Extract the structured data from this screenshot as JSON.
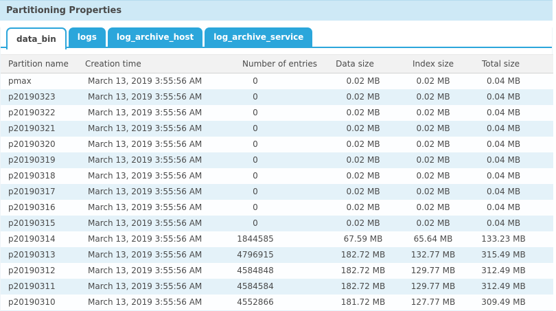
{
  "panel": {
    "title": "Partitioning Properties"
  },
  "tabs": [
    {
      "label": "data_bin",
      "active": true
    },
    {
      "label": "logs",
      "active": false
    },
    {
      "label": "log_archive_host",
      "active": false
    },
    {
      "label": "log_archive_service",
      "active": false
    }
  ],
  "table": {
    "columns": [
      "Partition name",
      "Creation time",
      "Number of entries",
      "Data size",
      "Index size",
      "Total size"
    ],
    "column_keys": [
      "partition-name",
      "creation-time",
      "number-of-entries",
      "data-size",
      "index-size",
      "total-size"
    ],
    "rows": [
      [
        "pmax",
        "March 13, 2019 3:55:56 AM",
        "0",
        "0.02 MB",
        "0.02 MB",
        "0.04 MB"
      ],
      [
        "p20190323",
        "March 13, 2019 3:55:56 AM",
        "0",
        "0.02 MB",
        "0.02 MB",
        "0.04 MB"
      ],
      [
        "p20190322",
        "March 13, 2019 3:55:56 AM",
        "0",
        "0.02 MB",
        "0.02 MB",
        "0.04 MB"
      ],
      [
        "p20190321",
        "March 13, 2019 3:55:56 AM",
        "0",
        "0.02 MB",
        "0.02 MB",
        "0.04 MB"
      ],
      [
        "p20190320",
        "March 13, 2019 3:55:56 AM",
        "0",
        "0.02 MB",
        "0.02 MB",
        "0.04 MB"
      ],
      [
        "p20190319",
        "March 13, 2019 3:55:56 AM",
        "0",
        "0.02 MB",
        "0.02 MB",
        "0.04 MB"
      ],
      [
        "p20190318",
        "March 13, 2019 3:55:56 AM",
        "0",
        "0.02 MB",
        "0.02 MB",
        "0.04 MB"
      ],
      [
        "p20190317",
        "March 13, 2019 3:55:56 AM",
        "0",
        "0.02 MB",
        "0.02 MB",
        "0.04 MB"
      ],
      [
        "p20190316",
        "March 13, 2019 3:55:56 AM",
        "0",
        "0.02 MB",
        "0.02 MB",
        "0.04 MB"
      ],
      [
        "p20190315",
        "March 13, 2019 3:55:56 AM",
        "0",
        "0.02 MB",
        "0.02 MB",
        "0.04 MB"
      ],
      [
        "p20190314",
        "March 13, 2019 3:55:56 AM",
        "1844585",
        "67.59 MB",
        "65.64 MB",
        "133.23 MB"
      ],
      [
        "p20190313",
        "March 13, 2019 3:55:56 AM",
        "4796915",
        "182.72 MB",
        "132.77 MB",
        "315.49 MB"
      ],
      [
        "p20190312",
        "March 13, 2019 3:55:56 AM",
        "4584848",
        "182.72 MB",
        "129.77 MB",
        "312.49 MB"
      ],
      [
        "p20190311",
        "March 13, 2019 3:55:56 AM",
        "4584584",
        "182.72 MB",
        "129.77 MB",
        "312.49 MB"
      ],
      [
        "p20190310",
        "March 13, 2019 3:55:56 AM",
        "4552866",
        "181.72 MB",
        "127.77 MB",
        "309.49 MB"
      ]
    ]
  },
  "colors": {
    "accent": "#2ba6db",
    "title_bar_bg": "#cee9f6",
    "table_header_bg": "#f2f2f2",
    "row_alt_bg": "#e4f2f9"
  }
}
